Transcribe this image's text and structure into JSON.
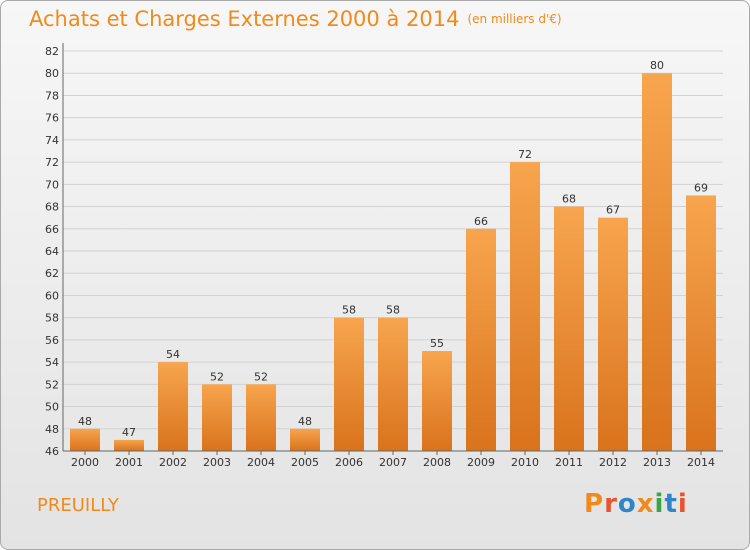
{
  "header": {
    "title": "Achats et Charges Externes 2000 à 2014",
    "subtitle": "(en milliers d'€)"
  },
  "footer": {
    "city": "PREUILLY",
    "logo": "Proxiti"
  },
  "colors": {
    "accent": "#f08a1c",
    "bar_top": "#f7a54e",
    "bar_bottom": "#d9731c",
    "logo_letters": [
      "#f08a1c",
      "#e8542f",
      "#2e86c8",
      "#f08a1c",
      "#3aa547",
      "#2e86c8",
      "#e8542f"
    ]
  },
  "chart_data": {
    "type": "bar",
    "title": "Achats et Charges Externes 2000 à 2014",
    "subtitle": "(en milliers d'€)",
    "categories": [
      "2000",
      "2001",
      "2002",
      "2003",
      "2004",
      "2005",
      "2006",
      "2007",
      "2008",
      "2009",
      "2010",
      "2011",
      "2012",
      "2013",
      "2014"
    ],
    "values": [
      48,
      47,
      54,
      52,
      52,
      48,
      58,
      58,
      55,
      66,
      72,
      68,
      67,
      80,
      69
    ],
    "ylim": [
      46,
      82
    ],
    "yticks": [
      46,
      48,
      50,
      52,
      54,
      56,
      58,
      60,
      62,
      64,
      66,
      68,
      70,
      72,
      74,
      76,
      78,
      80,
      82
    ],
    "grid": true,
    "data_labels": true,
    "legend": "none"
  }
}
